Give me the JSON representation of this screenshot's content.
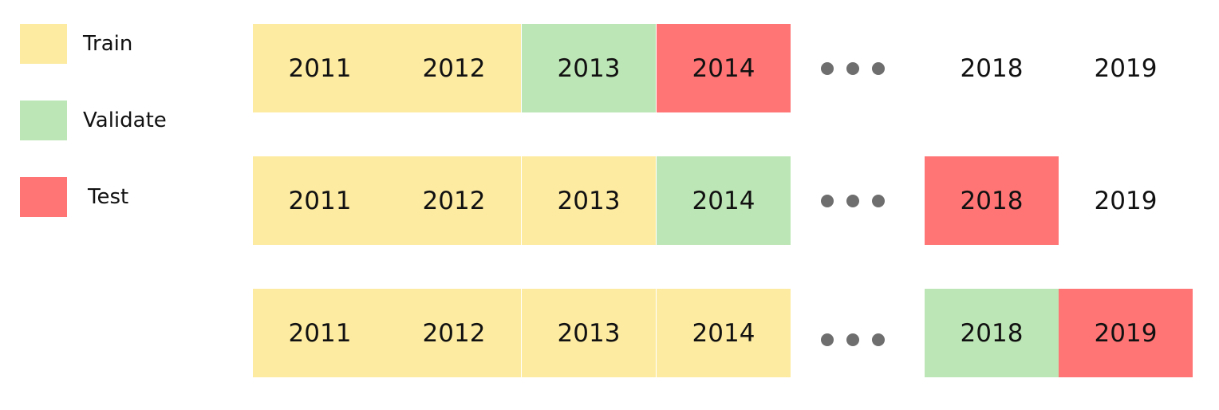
{
  "colors": {
    "train": "#fdeba2",
    "validate": "#bde6b6",
    "test": "#ff7575",
    "none": "#ffffff"
  },
  "legend": [
    {
      "label": "Train",
      "role": "train"
    },
    {
      "label": "Validate",
      "role": "validate"
    },
    {
      "label": "Test",
      "role": "test"
    }
  ],
  "rows": [
    {
      "cells": [
        {
          "year": "2011",
          "role": "train"
        },
        {
          "year": "2012",
          "role": "train"
        },
        {
          "year": "2013",
          "role": "validate"
        },
        {
          "year": "2014",
          "role": "test"
        },
        {
          "year": "2018",
          "role": "none"
        },
        {
          "year": "2019",
          "role": "none"
        }
      ]
    },
    {
      "cells": [
        {
          "year": "2011",
          "role": "train"
        },
        {
          "year": "2012",
          "role": "train"
        },
        {
          "year": "2013",
          "role": "train"
        },
        {
          "year": "2014",
          "role": "validate"
        },
        {
          "year": "2018",
          "role": "test"
        },
        {
          "year": "2019",
          "role": "none"
        }
      ]
    },
    {
      "cells": [
        {
          "year": "2011",
          "role": "train"
        },
        {
          "year": "2012",
          "role": "train"
        },
        {
          "year": "2013",
          "role": "train"
        },
        {
          "year": "2014",
          "role": "train"
        },
        {
          "year": "2018",
          "role": "validate"
        },
        {
          "year": "2019",
          "role": "test"
        }
      ]
    }
  ]
}
